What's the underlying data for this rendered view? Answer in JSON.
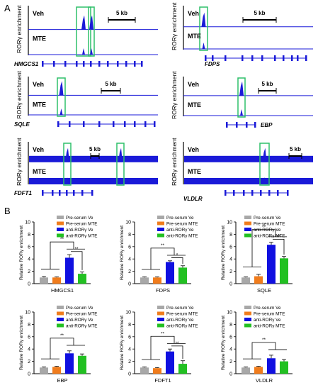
{
  "panel_a": {
    "label": "A",
    "ylabel": "RORγ enrichment",
    "row_veh": "Veh",
    "row_mte": "MTE",
    "scalebar": "5 kb",
    "tracks": [
      {
        "gene": "HMGCS1"
      },
      {
        "gene": "FDPS"
      },
      {
        "gene": "SQLE"
      },
      {
        "gene": "EBP"
      },
      {
        "gene": "FDFT1"
      },
      {
        "gene": "VLDLR"
      }
    ]
  },
  "panel_b": {
    "label": "B",
    "legend": [
      "Pre-serum Ve",
      "Pre-serum MTE",
      "anti-RORγ Ve",
      "anti-RORγ MTE"
    ],
    "colors": [
      "#a8a8a8",
      "#f07c1c",
      "#1010e0",
      "#22c022"
    ],
    "ylabel": "Relative RORγ enrichment"
  },
  "chart_data": [
    {
      "type": "bar",
      "xlabel": "HMGCS1",
      "ylabel": "Relative RORγ enrichment",
      "ylim": [
        0,
        10
      ],
      "yticks": [
        0,
        2,
        4,
        6,
        8,
        10
      ],
      "categories": [
        "Pre-serum Ve",
        "Pre-serum MTE",
        "anti-RORγ Ve",
        "anti-RORγ MTE"
      ],
      "values": [
        1.0,
        1.0,
        4.2,
        1.6
      ],
      "errors": [
        0.15,
        0.1,
        0.5,
        0.3
      ],
      "significance": [
        "**",
        "**"
      ]
    },
    {
      "type": "bar",
      "xlabel": "FDPS",
      "ylabel": "Relative RORγ enrichment",
      "ylim": [
        0,
        10
      ],
      "yticks": [
        0,
        2,
        4,
        6,
        8,
        10
      ],
      "categories": [
        "Pre-serum Ve",
        "Pre-serum MTE",
        "anti-RORγ Ve",
        "anti-RORγ MTE"
      ],
      "values": [
        1.0,
        1.0,
        3.5,
        2.6
      ],
      "errors": [
        0.1,
        0.1,
        0.2,
        0.3
      ],
      "significance": [
        "**",
        "*"
      ]
    },
    {
      "type": "bar",
      "xlabel": "SQLE",
      "ylabel": "Relative RORγ enrichment",
      "ylim": [
        0,
        10
      ],
      "yticks": [
        0,
        2,
        4,
        6,
        8,
        10
      ],
      "categories": [
        "Pre-serum Ve",
        "Pre-serum MTE",
        "anti-RORγ Ve",
        "anti-RORγ MTE"
      ],
      "values": [
        1.0,
        1.2,
        6.3,
        4.1
      ],
      "errors": [
        0.1,
        0.3,
        0.4,
        0.3
      ],
      "significance": [
        "**",
        "**"
      ]
    },
    {
      "type": "bar",
      "xlabel": "EBP",
      "ylabel": "Relative RORγ enrichment",
      "ylim": [
        0,
        10
      ],
      "yticks": [
        0,
        2,
        4,
        6,
        8,
        10
      ],
      "categories": [
        "Pre-serum Ve",
        "Pre-serum MTE",
        "anti-RORγ Ve",
        "anti-RORγ MTE"
      ],
      "values": [
        1.0,
        1.1,
        3.3,
        2.9
      ],
      "errors": [
        0.1,
        0.1,
        0.4,
        0.3
      ],
      "significance": [
        "**"
      ]
    },
    {
      "type": "bar",
      "xlabel": "FDFT1",
      "ylabel": "Relative RORγ enrichment",
      "ylim": [
        0,
        10
      ],
      "yticks": [
        0,
        2,
        4,
        6,
        8,
        10
      ],
      "categories": [
        "Pre-serum Ve",
        "Pre-serum MTE",
        "anti-RORγ Ve",
        "anti-RORγ MTE"
      ],
      "values": [
        1.0,
        0.9,
        3.6,
        1.6
      ],
      "errors": [
        0.1,
        0.1,
        0.4,
        0.5
      ],
      "significance": [
        "**",
        "**"
      ]
    },
    {
      "type": "bar",
      "xlabel": "VLDLR",
      "ylabel": "Relative RORγ enrichment",
      "ylim": [
        0,
        10
      ],
      "yticks": [
        0,
        2,
        4,
        6,
        8,
        10
      ],
      "categories": [
        "Pre-serum Ve",
        "Pre-serum MTE",
        "anti-RORγ Ve",
        "anti-RORγ MTE"
      ],
      "values": [
        1.0,
        1.1,
        2.5,
        2.0
      ],
      "errors": [
        0.1,
        0.1,
        0.5,
        0.3
      ],
      "significance": [
        "**"
      ]
    }
  ]
}
